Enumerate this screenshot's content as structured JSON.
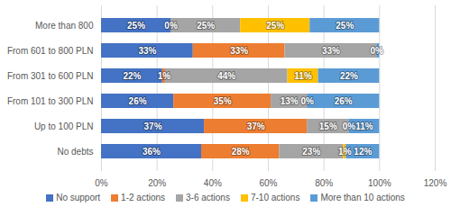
{
  "chart_data": {
    "type": "bar",
    "orientation": "horizontal",
    "stacked": true,
    "data_labels": true,
    "grid": true,
    "legend": "bottom",
    "categories": [
      "More than 800",
      "From 601 to 800 PLN",
      "From 301 to 600 PLN",
      "From 101 to 300 PLN",
      "Up to 100 PLN",
      "No debts"
    ],
    "series": [
      {
        "name": "No support",
        "color": "#4472c4",
        "values": [
          25,
          33,
          22,
          26,
          37,
          36
        ],
        "value_labels": [
          "25%",
          "33%",
          "22%",
          "26%",
          "37%",
          "36%"
        ]
      },
      {
        "name": "1-2 actions",
        "color": "#ed7d31",
        "values": [
          0,
          33,
          1,
          35,
          37,
          28
        ],
        "value_labels": [
          "0%",
          "33%",
          "1%",
          "35%",
          "37%",
          "28%"
        ]
      },
      {
        "name": "3-6 actions",
        "color": "#a5a5a5",
        "values": [
          25,
          33,
          44,
          13,
          15,
          23
        ],
        "value_labels": [
          "25%",
          "33%",
          "44%",
          "13%",
          "15%",
          "23%"
        ]
      },
      {
        "name": "7-10 actions",
        "color": "#ffc000",
        "values": [
          25,
          0,
          11,
          0,
          0,
          1
        ],
        "value_labels": [
          "25%",
          "0%",
          "11%",
          "0%",
          "0%",
          "1%"
        ]
      },
      {
        "name": "More than 10 actions",
        "color": "#5b9bd5",
        "values": [
          25,
          1,
          22,
          26,
          11,
          12
        ],
        "value_labels": [
          "25%",
          null,
          "22%",
          "26%",
          "11%",
          "12%"
        ]
      }
    ],
    "xlim": [
      0,
      120
    ],
    "xticks": [
      {
        "value": 0,
        "label": "0%"
      },
      {
        "value": 20,
        "label": "20%"
      },
      {
        "value": 40,
        "label": "40%"
      },
      {
        "value": 60,
        "label": "60%"
      },
      {
        "value": 80,
        "label": "80%"
      },
      {
        "value": 100,
        "label": "100%"
      },
      {
        "value": 120,
        "label": "120%"
      }
    ]
  }
}
